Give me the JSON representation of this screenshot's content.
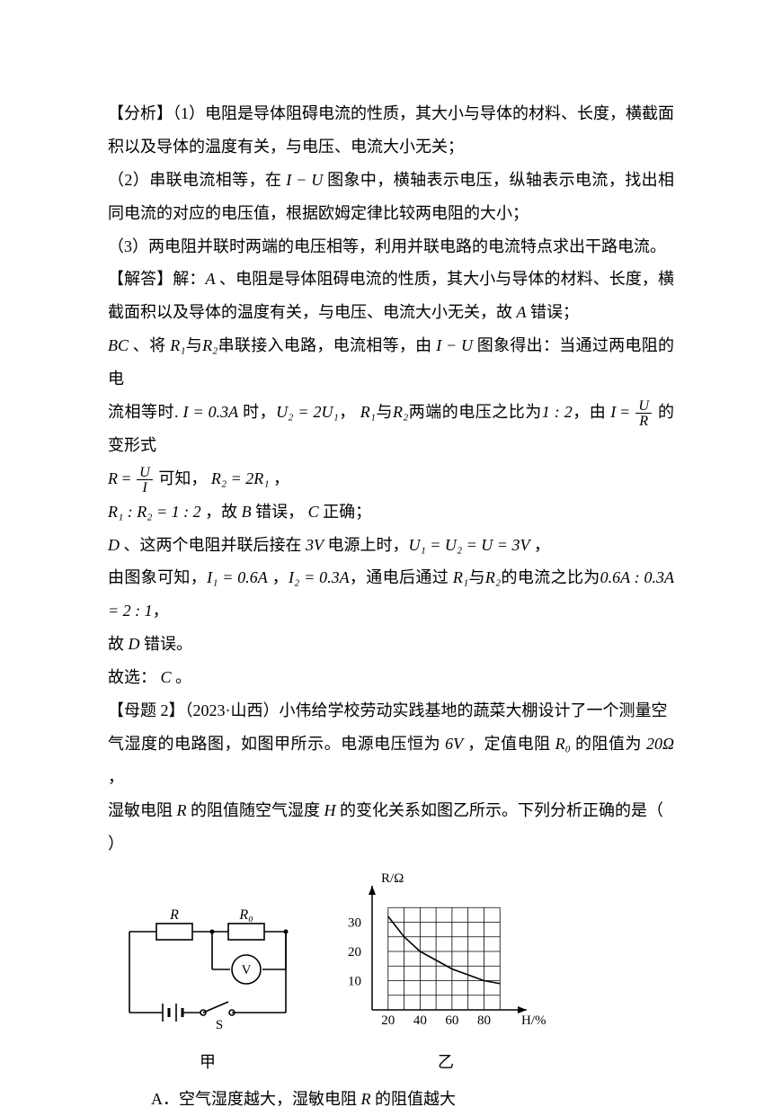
{
  "p1": "【分析】（1）电阻是导体阻碍电流的性质，其大小与导体的材料、长度，横截面积以及导体的温度有关，与电压、电流大小无关；",
  "p2_a": "（2）串联电流相等，在 ",
  "p2_b": " 图象中，横轴表示电压，纵轴表示电流，找出相同电流的对应的电压值，根据欧姆定律比较两电阻的大小；",
  "p3": "（3）两电阻并联时两端的电压相等，利用并联电路的电流特点求出干路电流。",
  "p4_a": "【解答】解：",
  "p4_b": " 、电阻是导体阻碍电流的性质，其大小与导体的材料、长度，横截面积以及导体的温度有关，与电压、电流大小无关，故 ",
  "p4_c": " 错误；",
  "p5_a": " 、将 ",
  "p5_b": "串联接入电路，电流相等，由 ",
  "p5_c": " 图象得出：当通过两电阻的电",
  "p5_d": "流相等时. ",
  "p5_e": " 时，",
  "p5_f": "两端的电压之比为",
  "p5_g": "，由 ",
  "p5_h": " 的变形式",
  "p6_a": " 可知， ",
  "p7_a": " ，故 ",
  "p7_b": " 错误， ",
  "p7_c": " 正确；",
  "p8_a": " 、这两个电阻并联后接在 ",
  "p8_b": " 电源上时，",
  "p9_a": "由图象可知，",
  "p9_b": "，通电后通过 ",
  "p9_c": "的电流之比为",
  "p9_d": "，",
  "p10_a": "故 ",
  "p10_b": " 错误。",
  "p11": "故选： ",
  "p11b": " 。",
  "p12_a": "【母题 2】（2023·山西）小伟给学校劳动实践基地的蔬菜大棚设计了一个测量空",
  "p12_b": "气湿度的电路图，如图甲所示。电源电压恒为 ",
  "p12_c": " ，定值电阻 ",
  "p12_d": " 的阻值为 ",
  "p12_e": " ，",
  "p13_a": "湿敏电阻 ",
  "p13_b": " 的阻值随空气湿度 ",
  "p13_c": " 的变化关系如图乙所示。下列分析正确的是（",
  "p13_d": "）",
  "optA_a": "A．空气湿度越大，湿敏电阻 ",
  "optA_b": " 的阻值越大",
  "sym": {
    "I_U": "I − U",
    "A": "A",
    "BC": "BC",
    "R1": "R₁",
    "R2": "R₂",
    "with": "与",
    "Ieq": "I = 0.3A",
    "U2eq": "U₂ = 2U₁",
    "ratio12": "1 : 2",
    "I": "I",
    "U": "U",
    "R": "R",
    "R2eq2R1": "R₂ = 2R₁",
    "R1R2_12": "R₁ : R₂ = 1 : 2",
    "B": "B",
    "C": "C",
    "D": "D",
    "3V": "3V",
    "U1U2U3V": "U₁ = U₂ = U = 3V",
    "I1": "I₁ = 0.6A",
    "I2": "I₂ = 0.3A",
    "ratioI": "0.6A : 0.3A = 2 : 1",
    "6V": "6V",
    "R0": "R₀",
    "20ohm": "20Ω",
    "H": "H"
  },
  "figure": {
    "caption_left": "甲",
    "caption_right": "乙",
    "circuit": {
      "labels": {
        "R": "R",
        "R0": "R₀",
        "V": "V",
        "S": "S"
      },
      "stroke": "#000000",
      "strokeWidth": 1.6
    },
    "graph": {
      "y_label": "R/Ω",
      "x_label": "H/%",
      "x_ticks": [
        20,
        40,
        60,
        80
      ],
      "y_ticks": [
        10,
        20,
        30
      ],
      "xlim": [
        10,
        100
      ],
      "ylim": [
        0,
        40
      ],
      "curve": [
        [
          20,
          32
        ],
        [
          30,
          25
        ],
        [
          40,
          20
        ],
        [
          50,
          17
        ],
        [
          60,
          14
        ],
        [
          70,
          12
        ],
        [
          80,
          10
        ],
        [
          90,
          9
        ]
      ],
      "grid_color": "#000000",
      "grid_width": 0.8,
      "axis_width": 1.5,
      "curve_width": 1.6,
      "bg": "#ffffff",
      "fontSize": 15
    }
  }
}
